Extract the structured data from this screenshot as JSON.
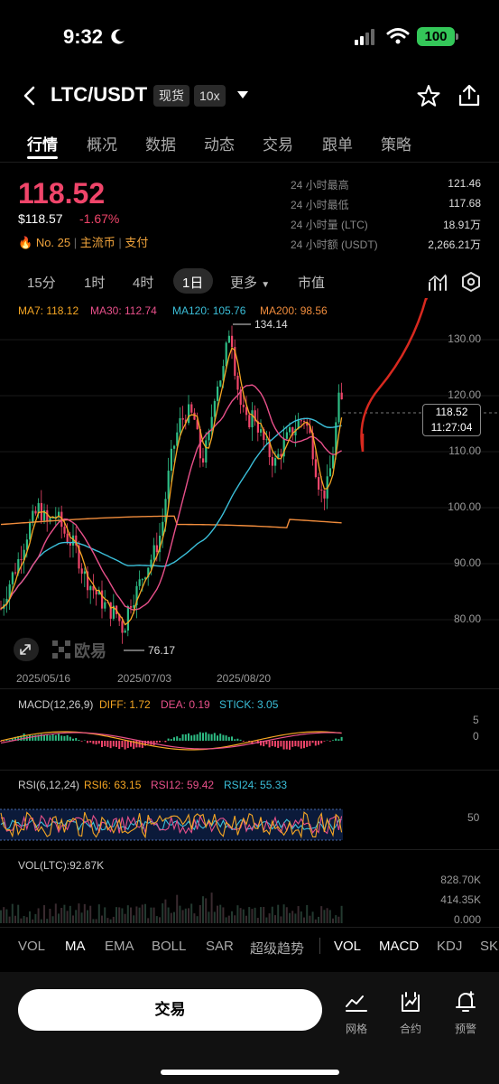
{
  "status": {
    "time": "9:32",
    "battery": "100"
  },
  "header": {
    "pair": "LTC/USDT",
    "tag_spot": "现货",
    "tag_leverage": "10x"
  },
  "tabs": [
    "行情",
    "概况",
    "数据",
    "动态",
    "交易",
    "跟单",
    "策略"
  ],
  "price": {
    "last": "118.52",
    "usd": "$118.57",
    "change": "-1.67%",
    "rank": "No. 25",
    "tag1": "主流币",
    "tag2": "支付"
  },
  "stats": [
    {
      "label": "24 小时最高",
      "value": "121.46"
    },
    {
      "label": "24 小时最低",
      "value": "117.68"
    },
    {
      "label": "24 小时量 (LTC)",
      "value": "18.91万"
    },
    {
      "label": "24 小时额 (USDT)",
      "value": "2,266.21万"
    }
  ],
  "periods": [
    "15分",
    "1时",
    "4时",
    "1日",
    "更多",
    "市值"
  ],
  "ma": {
    "ma7": "MA7: 118.12",
    "ma30": "MA30: 112.74",
    "ma120": "MA120: 105.76",
    "ma200": "MA200: 98.56"
  },
  "chart": {
    "high_label": "134.14",
    "low_label": "76.17",
    "price_tag": "118.52",
    "countdown": "11:27:04",
    "y_ticks": [
      "130.00",
      "120.00",
      "110.00",
      "100.00",
      "90.00",
      "80.00"
    ],
    "x_ticks": [
      "2025/05/16",
      "2025/07/03",
      "2025/08/20"
    ],
    "watermark": "欧易"
  },
  "macd": {
    "title": "MACD(12,26,9)",
    "diff": "DIFF: 1.72",
    "dea": "DEA: 0.19",
    "stick": "STICK: 3.05",
    "ticks": [
      "5",
      "0"
    ]
  },
  "rsi": {
    "title": "RSI(6,12,24)",
    "rsi6": "RSI6: 63.15",
    "rsi12": "RSI12: 59.42",
    "rsi24": "RSI24: 55.33",
    "tick": "50"
  },
  "vol": {
    "title": "VOL(LTC):92.87K",
    "ticks": [
      "828.70K",
      "414.35K",
      "0.000"
    ]
  },
  "indicators": [
    "VOL",
    "MA",
    "EMA",
    "BOLL",
    "SAR",
    "超级趋势",
    "VOL",
    "MACD",
    "KDJ",
    "SK"
  ],
  "bottom": {
    "trade": "交易",
    "grid": "网格",
    "contract": "合约",
    "alert": "预警"
  },
  "colors": {
    "up": "#2ebd85",
    "down": "#f0456a",
    "ma7": "#f5a623",
    "ma30": "#e8508a",
    "ma120": "#3bbfd9",
    "ma200": "#f08c3c"
  }
}
